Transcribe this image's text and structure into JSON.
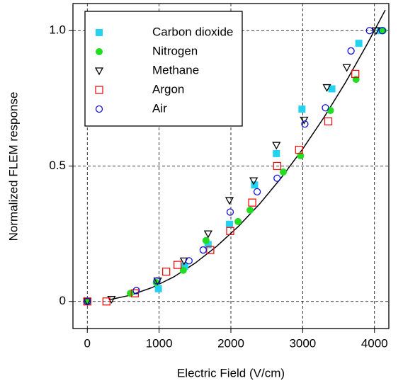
{
  "chart_data": {
    "type": "scatter",
    "x_label": "Electric Field (V/cm)",
    "y_label": "Normalized FLEM response",
    "xlim": [
      -200,
      4200
    ],
    "ylim": [
      -0.1,
      1.1
    ],
    "xticks": [
      0,
      1000,
      2000,
      3000,
      4000
    ],
    "yticks": [
      0,
      0.5,
      {
        "value": 1,
        "label": "1.0"
      }
    ],
    "grid": true,
    "legend": "upper-left",
    "series": [
      {
        "name": "Carbon dioxide",
        "color": "#22d3f0",
        "marker": "square-filled",
        "x": [
          0,
          990,
          1356,
          1683,
          1980,
          2330,
          2634,
          2990,
          3406,
          3782,
          4079
        ],
        "values": [
          0,
          0.047,
          0.13,
          0.21,
          0.285,
          0.43,
          0.546,
          0.71,
          0.785,
          0.953,
          1.0
        ]
      },
      {
        "name": "Nitrogen",
        "color": "#22dd22",
        "marker": "circle-filled",
        "x": [
          0,
          600,
          960,
          1337,
          1653,
          2100,
          2267,
          2730,
          2970,
          3386,
          3743,
          4120
        ],
        "values": [
          0,
          0.03,
          0.07,
          0.115,
          0.225,
          0.295,
          0.337,
          0.478,
          0.538,
          0.705,
          0.82,
          1.0
        ]
      },
      {
        "name": "Methane",
        "color": "#000000",
        "marker": "triangle-down-open",
        "x": [
          0,
          337,
          980,
          1347,
          1683,
          1980,
          2317,
          2634,
          3020,
          3337,
          3614,
          4020
        ],
        "values": [
          0,
          0.008,
          0.076,
          0.15,
          0.25,
          0.373,
          0.446,
          0.577,
          0.67,
          0.79,
          0.864,
          1.0
        ]
      },
      {
        "name": "Argon",
        "color": "#ee1111",
        "marker": "square-open",
        "x": [
          0,
          267,
          663,
          1099,
          1257,
          1713,
          1990,
          2297,
          2644,
          2950,
          3356,
          3733
        ],
        "values": [
          0,
          0,
          0.03,
          0.11,
          0.135,
          0.19,
          0.26,
          0.365,
          0.5,
          0.56,
          0.665,
          0.84
        ]
      },
      {
        "name": "Air",
        "color": "#1111dd",
        "marker": "circle-open",
        "x": [
          0,
          683,
          970,
          1416,
          1614,
          1990,
          2366,
          2644,
          3030,
          3317,
          3673,
          3931,
          4109
        ],
        "values": [
          0,
          0.04,
          0.076,
          0.15,
          0.19,
          0.33,
          0.405,
          0.455,
          0.655,
          0.715,
          0.925,
          1.0,
          1.0
        ]
      }
    ],
    "curve": {
      "color": "#000000",
      "x": [
        300,
        600,
        900,
        1200,
        1500,
        1800,
        2100,
        2400,
        2700,
        3000,
        3300,
        3600,
        3900,
        4150
      ],
      "values": [
        0.006,
        0.023,
        0.051,
        0.09,
        0.141,
        0.203,
        0.276,
        0.36,
        0.456,
        0.563,
        0.681,
        0.81,
        0.951,
        1.076
      ]
    }
  }
}
